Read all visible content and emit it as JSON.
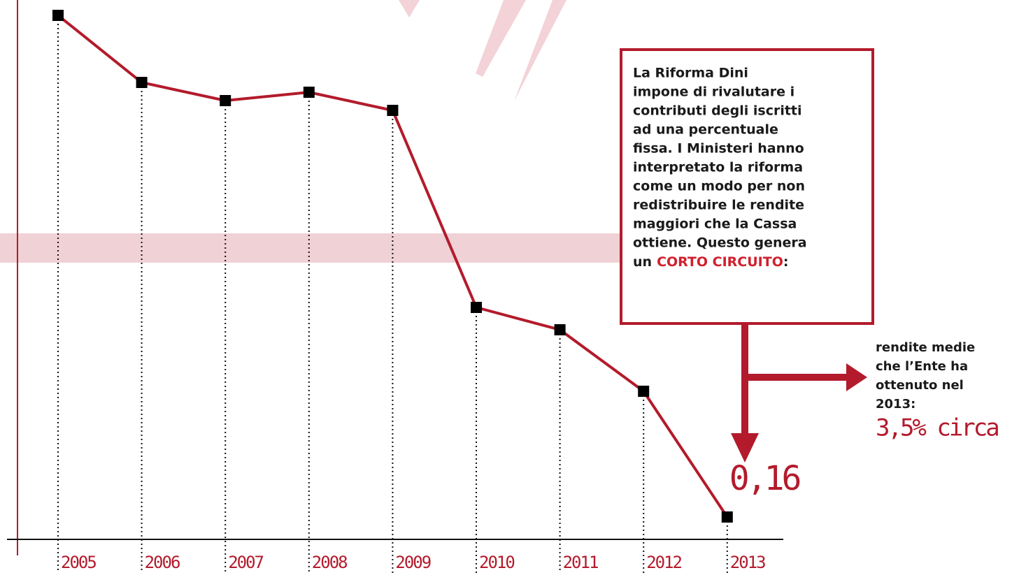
{
  "chart_data": {
    "type": "line",
    "categories": [
      "2005",
      "2006",
      "2007",
      "2008",
      "2009",
      "2010",
      "2011",
      "2012",
      "2013"
    ],
    "series": [
      {
        "color": "#b31b2c",
        "values": [
          3.75,
          3.27,
          3.14,
          3.2,
          3.07,
          1.66,
          1.5,
          1.06,
          0.16
        ],
        "value_labels": [
          null,
          null,
          null,
          null,
          null,
          null,
          null,
          null,
          "0,16"
        ]
      }
    ],
    "ylim": [
      0,
      3.86
    ],
    "annotation": {
      "lines": [
        "La Riforma Dini",
        "impone di rivalutare i",
        "contributi degli iscritti",
        "ad una percentuale",
        "fissa. I Ministeri hanno",
        "interpretato la  riforma",
        "come un modo per non",
        "redistribuire le rendite",
        "maggiori che la Cassa",
        "ottiene. Questo genera"
      ],
      "last_line": {
        "before": "un",
        "highlight": "CORTO CIRCUITO",
        "after": ":"
      }
    },
    "side_note": {
      "lines": [
        "rendite medie",
        "che l’Ente ha",
        "ottenuto nel",
        "2013:"
      ],
      "figure": "3,5% circa"
    }
  }
}
